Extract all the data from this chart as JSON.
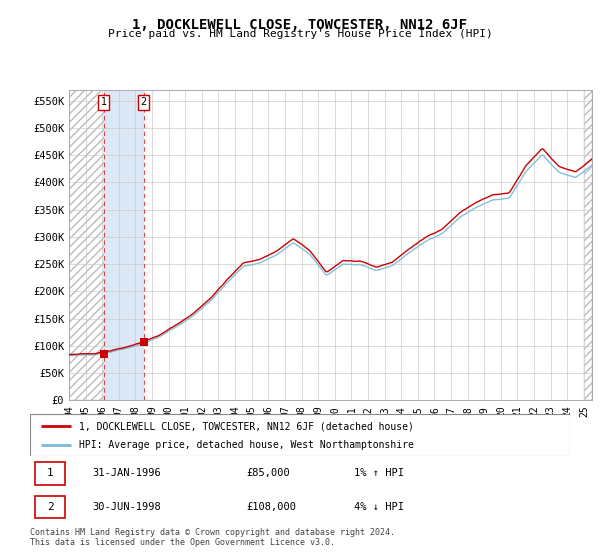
{
  "title": "1, DOCKLEWELL CLOSE, TOWCESTER, NN12 6JF",
  "subtitle": "Price paid vs. HM Land Registry's House Price Index (HPI)",
  "legend_line1": "1, DOCKLEWELL CLOSE, TOWCESTER, NN12 6JF (detached house)",
  "legend_line2": "HPI: Average price, detached house, West Northamptonshire",
  "transaction1_label": "1",
  "transaction1_date": "31-JAN-1996",
  "transaction1_price": "£85,000",
  "transaction1_hpi": "1% ↑ HPI",
  "transaction2_label": "2",
  "transaction2_date": "30-JUN-1998",
  "transaction2_price": "£108,000",
  "transaction2_hpi": "4% ↓ HPI",
  "footnote": "Contains HM Land Registry data © Crown copyright and database right 2024.\nThis data is licensed under the Open Government Licence v3.0.",
  "hpi_color": "#7ab8d9",
  "price_color": "#cc0000",
  "bg_color": "#ffffff",
  "stripe_color": "#dce8f5",
  "ylim": [
    0,
    570000
  ],
  "yticks": [
    0,
    50000,
    100000,
    150000,
    200000,
    250000,
    300000,
    350000,
    400000,
    450000,
    500000,
    550000
  ],
  "ytick_labels": [
    "£0",
    "£50K",
    "£100K",
    "£150K",
    "£200K",
    "£250K",
    "£300K",
    "£350K",
    "£400K",
    "£450K",
    "£500K",
    "£550K"
  ],
  "trans1_x": 1996.08,
  "trans1_y": 85000,
  "trans2_x": 1998.5,
  "trans2_y": 108000,
  "xlim_left": 1994.0,
  "xlim_right": 2025.5,
  "xtick_labels": [
    "94",
    "95",
    "96",
    "97",
    "98",
    "99",
    "00",
    "01",
    "02",
    "03",
    "04",
    "05",
    "06",
    "07",
    "08",
    "09",
    "10",
    "11",
    "12",
    "13",
    "14",
    "15",
    "16",
    "17",
    "18",
    "19",
    "20",
    "21",
    "22",
    "23",
    "24",
    "25"
  ],
  "xtick_positions": [
    1994,
    1995,
    1996,
    1997,
    1998,
    1999,
    2000,
    2001,
    2002,
    2003,
    2004,
    2005,
    2006,
    2007,
    2008,
    2009,
    2010,
    2011,
    2012,
    2013,
    2014,
    2015,
    2016,
    2017,
    2018,
    2019,
    2020,
    2021,
    2022,
    2023,
    2024,
    2025
  ]
}
